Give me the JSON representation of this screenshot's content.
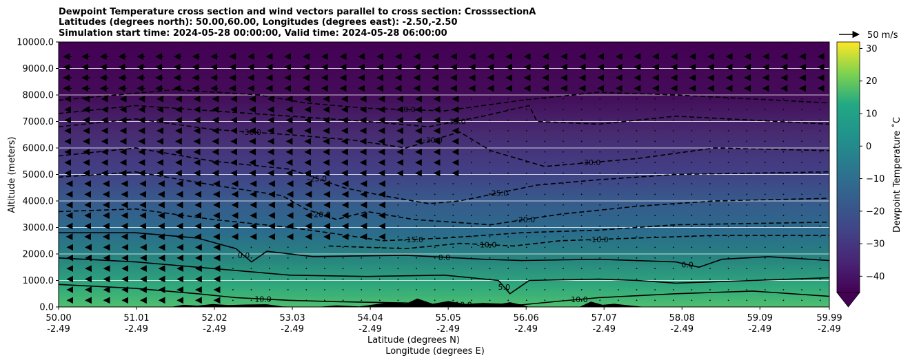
{
  "chart_data": {
    "type": "heatmap",
    "title_lines": [
      "Dewpoint Temperature cross section and wind vectors parallel to cross section: CrosssectionA",
      "Latitudes (degrees north): 50.00,60.00, Longitudes (degrees east): -2.50,-2.50",
      "Simulation start time: 2024-05-28 00:00:00, Valid time: 2024-05-28 06:00:00"
    ],
    "xlabel": "Latitude (degrees N)",
    "xlabel2": "Longitude (degrees E)",
    "ylabel": "Altitude (meters)",
    "xlim": [
      50.0,
      59.99
    ],
    "ylim": [
      0,
      10000
    ],
    "x_ticks": [
      {
        "lat": "50.00",
        "lon": "-2.49",
        "v": 50.0
      },
      {
        "lat": "51.01",
        "lon": "-2.49",
        "v": 51.01
      },
      {
        "lat": "52.02",
        "lon": "-2.49",
        "v": 52.02
      },
      {
        "lat": "53.03",
        "lon": "-2.49",
        "v": 53.03
      },
      {
        "lat": "54.04",
        "lon": "-2.49",
        "v": 54.04
      },
      {
        "lat": "55.05",
        "lon": "-2.49",
        "v": 55.05
      },
      {
        "lat": "56.06",
        "lon": "-2.49",
        "v": 56.06
      },
      {
        "lat": "57.07",
        "lon": "-2.49",
        "v": 57.07
      },
      {
        "lat": "58.08",
        "lon": "-2.49",
        "v": 58.08
      },
      {
        "lat": "59.09",
        "lon": "-2.49",
        "v": 59.09
      },
      {
        "lat": "59.99",
        "lon": "-2.49",
        "v": 59.99
      }
    ],
    "y_ticks": [
      {
        "label": "0.0",
        "v": 0
      },
      {
        "label": "1000.0",
        "v": 1000
      },
      {
        "label": "2000.0",
        "v": 2000
      },
      {
        "label": "3000.0",
        "v": 3000
      },
      {
        "label": "4000.0",
        "v": 4000
      },
      {
        "label": "5000.0",
        "v": 5000
      },
      {
        "label": "6000.0",
        "v": 6000
      },
      {
        "label": "7000.0",
        "v": 7000
      },
      {
        "label": "8000.0",
        "v": 8000
      },
      {
        "label": "9000.0",
        "v": 9000
      },
      {
        "label": "10000.0",
        "v": 10000
      }
    ],
    "grid": "horizontal",
    "colorbar": {
      "label": "Dewpoint Temperature ˚C",
      "range": [
        -45,
        32
      ],
      "ticks": [
        "30",
        "20",
        "10",
        "0",
        "−10",
        "−20",
        "−30",
        "−40"
      ],
      "tick_values": [
        30,
        20,
        10,
        0,
        -10,
        -20,
        -30,
        -40
      ],
      "extend": "min",
      "colormap": "viridis"
    },
    "wind_key": {
      "label": "50 m/s"
    },
    "terrain": [
      [
        51.45,
        0
      ],
      [
        51.62,
        80
      ],
      [
        51.8,
        50
      ],
      [
        52.0,
        110
      ],
      [
        52.2,
        70
      ],
      [
        52.42,
        90
      ],
      [
        52.7,
        100
      ],
      [
        52.9,
        20
      ],
      [
        53.2,
        0
      ],
      [
        53.35,
        0
      ],
      [
        53.6,
        60
      ],
      [
        53.9,
        20
      ],
      [
        54.3,
        180
      ],
      [
        54.5,
        120
      ],
      [
        54.65,
        320
      ],
      [
        54.85,
        120
      ],
      [
        55.05,
        220
      ],
      [
        55.3,
        100
      ],
      [
        55.5,
        150
      ],
      [
        55.7,
        100
      ],
      [
        55.85,
        180
      ],
      [
        56.0,
        80
      ],
      [
        56.1,
        0
      ],
      [
        56.75,
        0
      ],
      [
        56.9,
        200
      ],
      [
        57.05,
        80
      ],
      [
        57.2,
        120
      ],
      [
        57.4,
        60
      ],
      [
        57.6,
        0
      ]
    ],
    "contours": [
      {
        "level": -40,
        "labels": [
          "-40.0"
        ],
        "points": [
          [
            50.0,
            7800
          ],
          [
            51.5,
            8200
          ],
          [
            52.6,
            8000
          ],
          [
            53.2,
            7700
          ],
          [
            54.0,
            7500
          ],
          [
            55.0,
            7400
          ],
          [
            56.0,
            7800
          ],
          [
            57.0,
            8100
          ],
          [
            58.0,
            8000
          ],
          [
            59.99,
            7700
          ]
        ]
      },
      {
        "level": -35,
        "labels": [
          "-35.0"
        ],
        "points": [
          [
            50.0,
            7300
          ],
          [
            51.0,
            7600
          ],
          [
            52.0,
            7400
          ],
          [
            53.0,
            7200
          ],
          [
            54.0,
            7000
          ],
          [
            54.8,
            6800
          ],
          [
            55.5,
            7200
          ],
          [
            56.1,
            7600
          ],
          [
            56.2,
            7000
          ],
          [
            57.0,
            6900
          ],
          [
            58.0,
            7200
          ],
          [
            59.99,
            6900
          ]
        ]
      },
      {
        "level": -30,
        "labels": [
          "-30.0",
          "-30.0",
          "-30.0"
        ],
        "points": [
          [
            50.0,
            6800
          ],
          [
            51.0,
            7100
          ],
          [
            52.0,
            6700
          ],
          [
            53.0,
            6500
          ],
          [
            53.8,
            6300
          ],
          [
            54.5,
            6000
          ],
          [
            55.2,
            6600
          ],
          [
            55.6,
            5900
          ],
          [
            56.3,
            5300
          ],
          [
            57.5,
            5600
          ],
          [
            58.5,
            6000
          ],
          [
            59.99,
            5900
          ]
        ]
      },
      {
        "level": -25,
        "labels": [
          "-25.0",
          "-25.0"
        ],
        "points": [
          [
            50.0,
            5700
          ],
          [
            51.0,
            6000
          ],
          [
            52.0,
            5500
          ],
          [
            53.0,
            5200
          ],
          [
            53.7,
            4500
          ],
          [
            54.2,
            4200
          ],
          [
            54.8,
            3900
          ],
          [
            55.2,
            4000
          ],
          [
            56.2,
            4600
          ],
          [
            57.0,
            4800
          ],
          [
            58.0,
            5000
          ],
          [
            59.99,
            5100
          ]
        ]
      },
      {
        "level": -20,
        "labels": [
          "-20.0",
          "-20.0"
        ],
        "points": [
          [
            50.0,
            4900
          ],
          [
            51.0,
            5100
          ],
          [
            52.0,
            4600
          ],
          [
            52.9,
            4200
          ],
          [
            53.2,
            3700
          ],
          [
            53.6,
            3300
          ],
          [
            54.0,
            3600
          ],
          [
            54.6,
            3300
          ],
          [
            55.6,
            3100
          ],
          [
            56.5,
            3500
          ],
          [
            57.5,
            3800
          ],
          [
            58.5,
            4000
          ],
          [
            59.99,
            4100
          ]
        ]
      },
      {
        "level": -15,
        "labels": [
          "-15.0"
        ],
        "points": [
          [
            50.0,
            3600
          ],
          [
            51.0,
            3700
          ],
          [
            52.0,
            3300
          ],
          [
            53.0,
            3000
          ],
          [
            53.5,
            2800
          ],
          [
            54.2,
            2500
          ],
          [
            55.0,
            2600
          ],
          [
            56.0,
            2800
          ],
          [
            57.0,
            2900
          ],
          [
            58.0,
            3100
          ],
          [
            59.99,
            3200
          ]
        ]
      },
      {
        "level": -10,
        "labels": [
          "-10.0",
          "-10.0"
        ],
        "points": [
          [
            53.5,
            2300
          ],
          [
            54.5,
            2200
          ],
          [
            55.2,
            2400
          ],
          [
            55.9,
            2300
          ],
          [
            56.5,
            2500
          ],
          [
            57.5,
            2600
          ],
          [
            58.5,
            2700
          ],
          [
            59.99,
            2700
          ]
        ]
      },
      {
        "level": 0,
        "labels": [
          "0.0",
          "0.0",
          "0.0"
        ],
        "points": [
          [
            50.0,
            2800
          ],
          [
            51.0,
            2800
          ],
          [
            51.8,
            2600
          ],
          [
            52.3,
            2200
          ],
          [
            52.5,
            1700
          ],
          [
            52.7,
            2100
          ],
          [
            53.3,
            1900
          ],
          [
            54.5,
            1950
          ],
          [
            55.5,
            1800
          ],
          [
            56.0,
            1750
          ],
          [
            57.0,
            1800
          ],
          [
            58.0,
            1700
          ],
          [
            58.3,
            1500
          ],
          [
            58.6,
            1800
          ],
          [
            59.2,
            1900
          ],
          [
            59.99,
            1750
          ]
        ]
      },
      {
        "level": 5,
        "labels": [
          "5.0"
        ],
        "points": [
          [
            50.0,
            1850
          ],
          [
            51.0,
            1700
          ],
          [
            52.0,
            1450
          ],
          [
            53.0,
            1200
          ],
          [
            54.0,
            1150
          ],
          [
            55.0,
            1200
          ],
          [
            55.7,
            1000
          ],
          [
            55.85,
            500
          ],
          [
            56.1,
            1000
          ],
          [
            57.0,
            1050
          ],
          [
            57.5,
            1000
          ],
          [
            58.0,
            900
          ],
          [
            59.0,
            1000
          ],
          [
            59.99,
            1100
          ]
        ]
      },
      {
        "level": 10,
        "labels": [
          "10.0",
          "10.0",
          "10.0"
        ],
        "points": [
          [
            50.0,
            850
          ],
          [
            51.0,
            700
          ],
          [
            51.8,
            500
          ],
          [
            52.3,
            350
          ],
          [
            53.0,
            250
          ],
          [
            53.6,
            200
          ],
          [
            54.5,
            150
          ],
          [
            55.0,
            50
          ],
          [
            55.5,
            130
          ],
          [
            56.0,
            80
          ],
          [
            56.5,
            220
          ],
          [
            57.0,
            350
          ],
          [
            58.0,
            500
          ],
          [
            59.0,
            600
          ],
          [
            59.99,
            400
          ]
        ]
      }
    ]
  }
}
